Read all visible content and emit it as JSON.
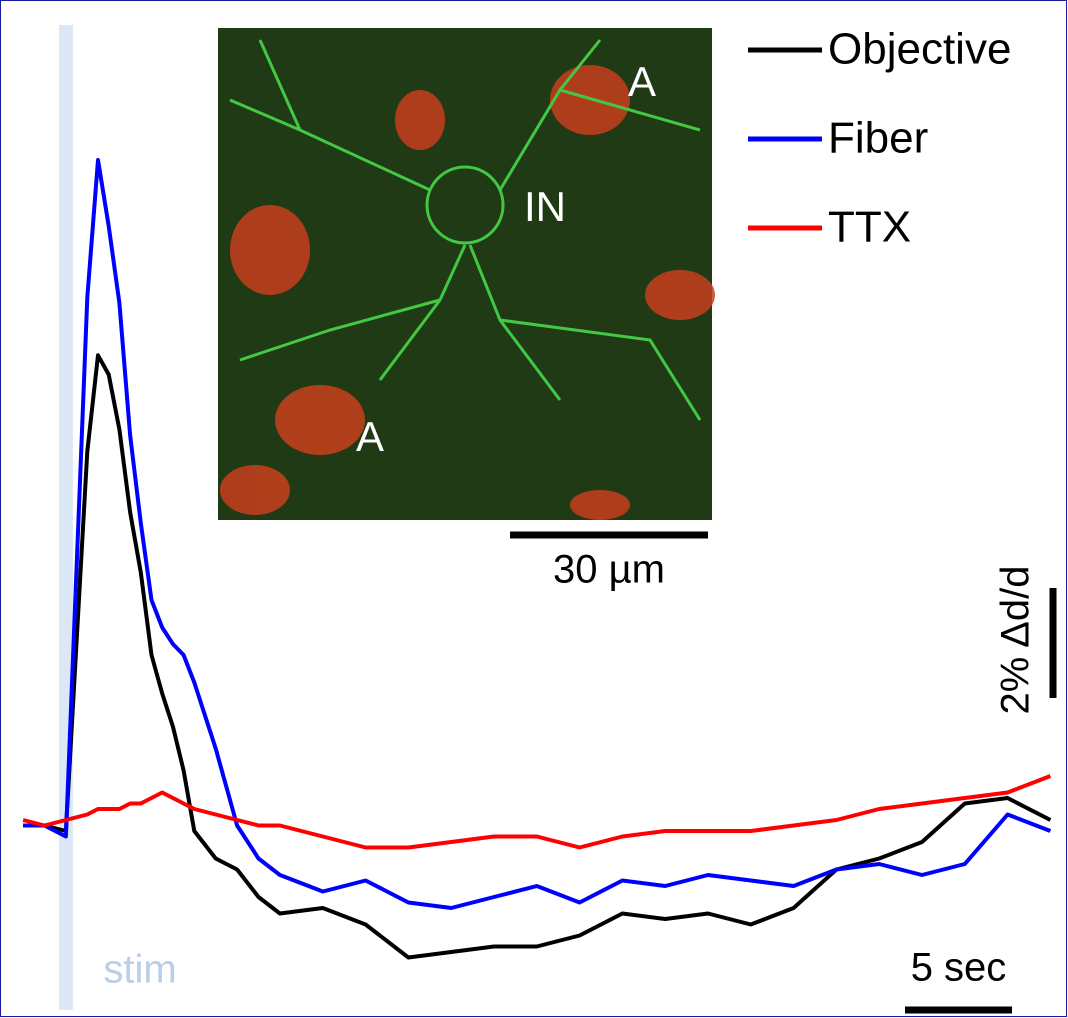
{
  "chart_data": {
    "type": "line",
    "x": [
      -2,
      -1,
      0,
      1,
      1.5,
      2,
      2.5,
      3,
      3.5,
      4,
      4.5,
      5,
      5.5,
      6,
      7,
      8,
      9,
      10,
      12,
      14,
      16,
      18,
      20,
      22,
      24,
      26,
      28,
      30,
      32,
      34,
      36,
      38,
      40,
      42,
      44,
      46
    ],
    "series": [
      {
        "name": "Objective",
        "color": "#000000",
        "values": [
          -0.1,
          -0.1,
          -0.2,
          6.7,
          8.45,
          8.1,
          7.1,
          5.6,
          4.5,
          3.0,
          2.3,
          1.7,
          0.9,
          -0.2,
          -0.7,
          -0.9,
          -1.4,
          -1.7,
          -1.6,
          -1.9,
          -2.5,
          -2.4,
          -2.3,
          -2.3,
          -2.1,
          -1.7,
          -1.8,
          -1.7,
          -1.9,
          -1.6,
          -0.9,
          -0.7,
          -0.4,
          0.3,
          0.4,
          0.0
        ]
      },
      {
        "name": "Fiber",
        "color": "#0000ff",
        "values": [
          -0.1,
          -0.1,
          -0.3,
          9.5,
          12.0,
          10.8,
          9.4,
          7.0,
          5.4,
          4.0,
          3.5,
          3.2,
          3.0,
          2.5,
          1.3,
          -0.1,
          -0.7,
          -1.0,
          -1.3,
          -1.1,
          -1.5,
          -1.6,
          -1.4,
          -1.2,
          -1.5,
          -1.1,
          -1.2,
          -1.0,
          -1.1,
          -1.2,
          -0.9,
          -0.8,
          -1.0,
          -0.8,
          0.1,
          -0.2
        ]
      },
      {
        "name": "TTX",
        "color": "#ff0000",
        "values": [
          0.0,
          -0.1,
          0.0,
          0.1,
          0.2,
          0.2,
          0.2,
          0.3,
          0.3,
          0.4,
          0.5,
          0.4,
          0.3,
          0.2,
          0.1,
          0.0,
          -0.1,
          -0.1,
          -0.3,
          -0.5,
          -0.5,
          -0.4,
          -0.3,
          -0.3,
          -0.5,
          -0.3,
          -0.2,
          -0.2,
          -0.2,
          -0.1,
          0.0,
          0.2,
          0.3,
          0.4,
          0.5,
          0.8
        ]
      }
    ],
    "xlim": [
      -3.08,
      46.82
    ],
    "ylim": [
      -3.6,
      14.91
    ],
    "stim": {
      "x": 0,
      "label": "stim"
    },
    "scale_bars": {
      "x": {
        "value": 5,
        "label": "5 sec"
      },
      "y": {
        "value": 2,
        "label": "2% Δd/d"
      }
    },
    "inset": {
      "labels": [
        "A",
        "IN",
        "A"
      ],
      "scale_bar": {
        "value": 30,
        "label": "30 µm"
      }
    }
  }
}
